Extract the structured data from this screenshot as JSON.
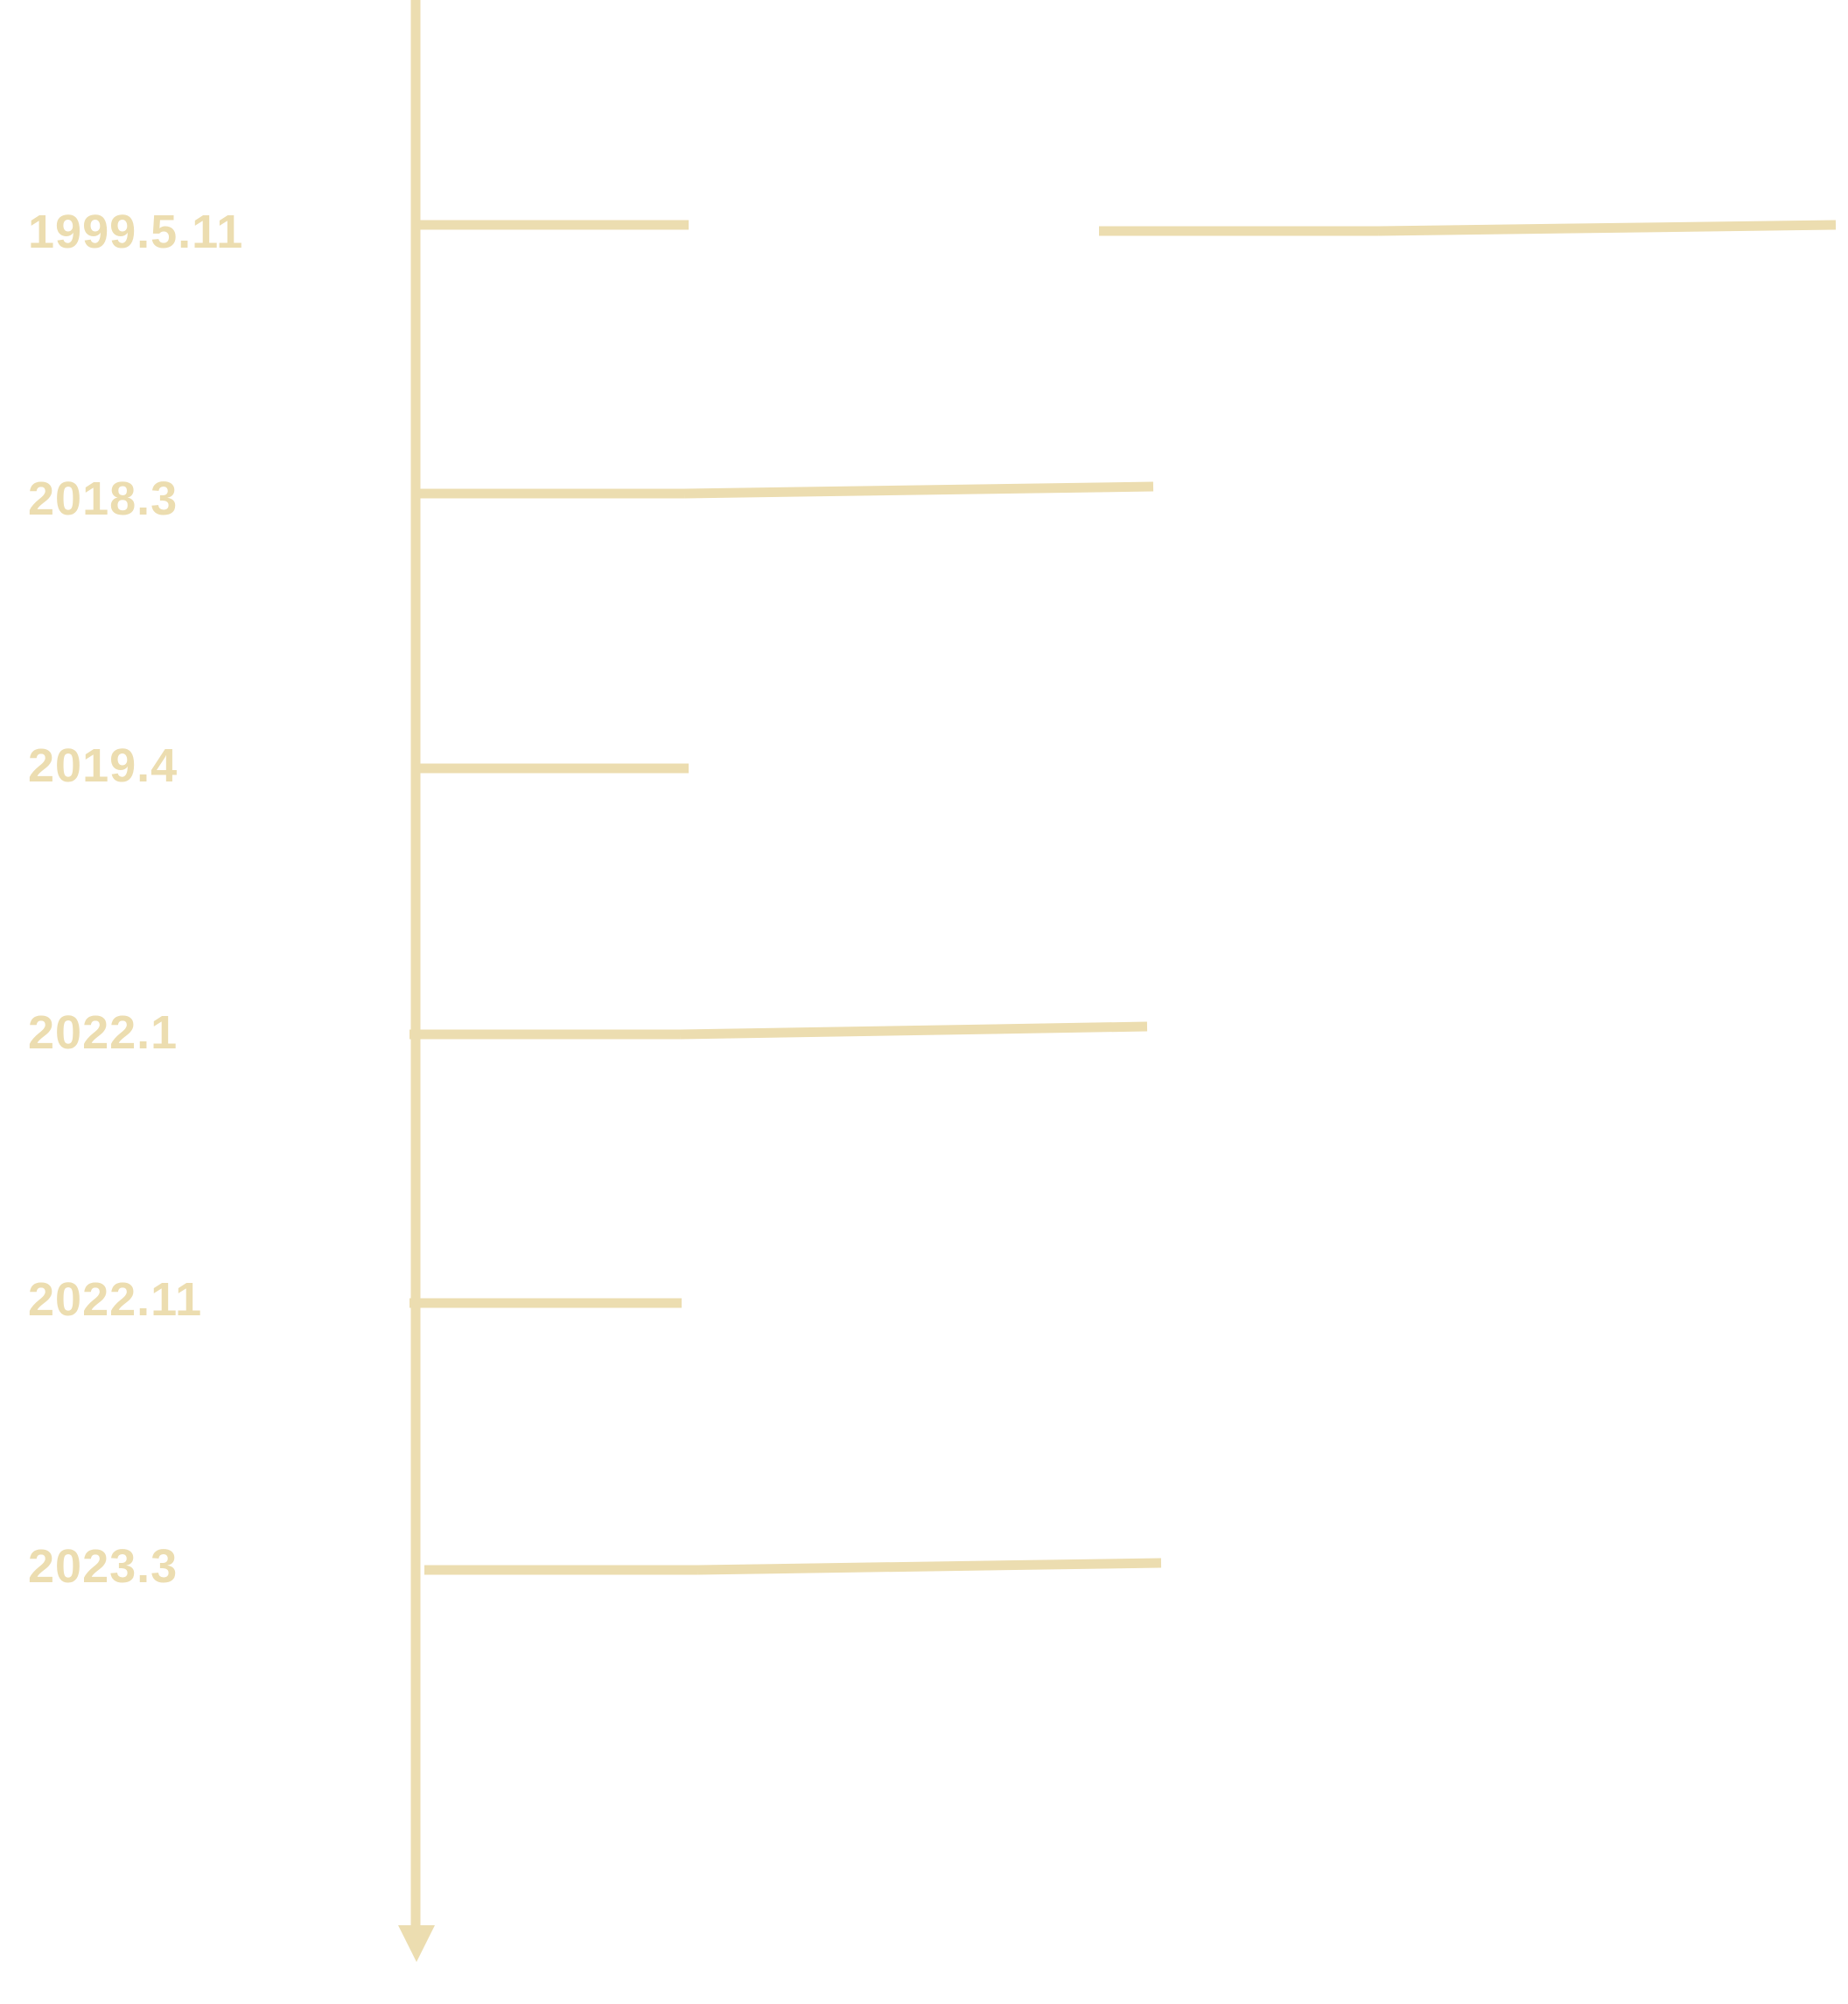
{
  "accent_color": "#ECDDB0",
  "background_color": "#FFFFFF",
  "timeline": {
    "direction": "top-to-bottom",
    "axis_end_icon": "arrow-down-icon",
    "dates": [
      "1999.5.11",
      "2018.3",
      "2019.4",
      "2022.1",
      "2022.11",
      "2023.3"
    ]
  }
}
